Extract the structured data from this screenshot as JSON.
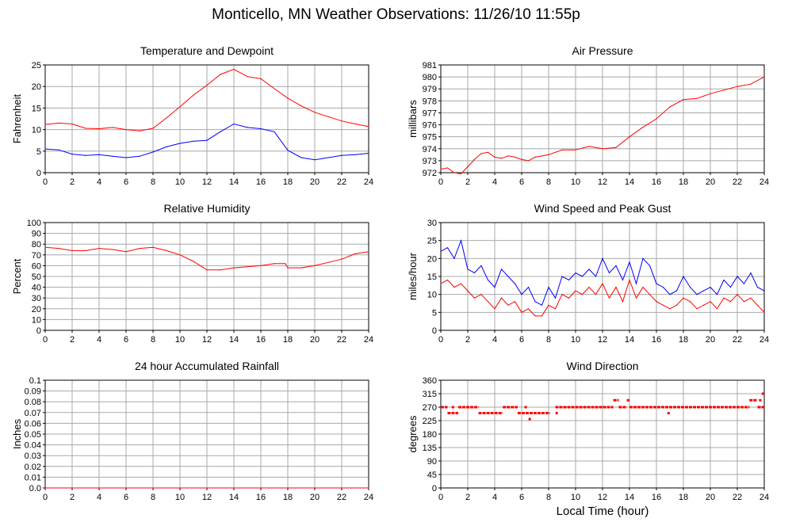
{
  "page": {
    "title": "Monticello, MN Weather Observations: 11/26/10 11:55p",
    "xaxis_label": "Local Time (hour)"
  },
  "colors": {
    "red": "#ff0000",
    "blue": "#0000ff",
    "grid": "#a8a8a8"
  },
  "chart_data": [
    {
      "id": "temp",
      "type": "line",
      "title": "Temperature and Dewpoint",
      "ylabel": "Fahrenheit",
      "xlim": [
        0,
        24
      ],
      "ylim": [
        0,
        25
      ],
      "x_ticks": [
        0,
        2,
        4,
        6,
        8,
        10,
        12,
        14,
        16,
        18,
        20,
        22,
        24
      ],
      "y_ticks": [
        0,
        5,
        10,
        15,
        20,
        25
      ],
      "grid": true,
      "series": [
        {
          "color": "#ff0000",
          "x": [
            0,
            1,
            2,
            3,
            4,
            5,
            6,
            7,
            8,
            9,
            10,
            11,
            12,
            13,
            14,
            15,
            16,
            17,
            18,
            19,
            20,
            21,
            22,
            23,
            24
          ],
          "values": [
            11.2,
            11.5,
            11.3,
            10.3,
            10.2,
            10.5,
            10.0,
            9.7,
            10.3,
            12.7,
            15.3,
            18.0,
            20.3,
            22.8,
            24.0,
            22.3,
            21.8,
            19.5,
            17.3,
            15.5,
            14.0,
            13.0,
            12.0,
            11.3,
            10.7
          ]
        },
        {
          "color": "#0000ff",
          "x": [
            0,
            1,
            2,
            3,
            4,
            5,
            6,
            7,
            8,
            9,
            10,
            11,
            12,
            13,
            14,
            15,
            16,
            17,
            18,
            19,
            20,
            21,
            22,
            23,
            24
          ],
          "values": [
            5.5,
            5.3,
            4.3,
            4.0,
            4.2,
            3.8,
            3.5,
            3.8,
            4.8,
            6.0,
            6.8,
            7.3,
            7.5,
            9.5,
            11.3,
            10.5,
            10.2,
            9.5,
            5.2,
            3.5,
            3.0,
            3.5,
            4.0,
            4.2,
            4.5
          ]
        }
      ]
    },
    {
      "id": "pressure",
      "type": "line",
      "title": "Air Pressure",
      "ylabel": "millibars",
      "xlim": [
        0,
        24
      ],
      "ylim": [
        972,
        981
      ],
      "x_ticks": [
        0,
        2,
        4,
        6,
        8,
        10,
        12,
        14,
        16,
        18,
        20,
        22,
        24
      ],
      "y_ticks": [
        972,
        973,
        974,
        975,
        976,
        977,
        978,
        979,
        980,
        981
      ],
      "grid": true,
      "series": [
        {
          "color": "#ff0000",
          "x": [
            0,
            0.5,
            1,
            1.5,
            2,
            2.5,
            3,
            3.5,
            4,
            4.5,
            5,
            5.5,
            6,
            6.5,
            7,
            8,
            9,
            10,
            11,
            12,
            13,
            14,
            15,
            16,
            17,
            18,
            19,
            20,
            21,
            22,
            23,
            24
          ],
          "values": [
            972.3,
            972.4,
            972.0,
            971.9,
            972.5,
            973.1,
            973.6,
            973.7,
            973.3,
            973.2,
            973.4,
            973.3,
            973.1,
            973.0,
            973.3,
            973.5,
            973.9,
            973.9,
            974.2,
            974.0,
            974.1,
            975.0,
            975.8,
            976.5,
            977.5,
            978.1,
            978.2,
            978.6,
            978.9,
            979.2,
            979.4,
            980.0
          ]
        }
      ]
    },
    {
      "id": "humidity",
      "type": "line",
      "title": "Relative Humidity",
      "ylabel": "Percent",
      "xlim": [
        0,
        24
      ],
      "ylim": [
        0,
        100
      ],
      "x_ticks": [
        0,
        2,
        4,
        6,
        8,
        10,
        12,
        14,
        16,
        18,
        20,
        22,
        24
      ],
      "y_ticks": [
        0,
        10,
        20,
        30,
        40,
        50,
        60,
        70,
        80,
        90,
        100
      ],
      "grid": true,
      "series": [
        {
          "color": "#ff0000",
          "x": [
            0,
            1,
            2,
            3,
            4,
            5,
            6,
            7,
            8,
            9,
            10,
            11,
            12,
            13,
            14,
            15,
            16,
            17,
            17.8,
            18,
            19,
            20,
            21,
            22,
            23,
            24
          ],
          "values": [
            77,
            76,
            74,
            74,
            76,
            75,
            73,
            76,
            77,
            74,
            70,
            64,
            56,
            56,
            58,
            59,
            60,
            62,
            62,
            58,
            58,
            60,
            63,
            66,
            71,
            73
          ]
        }
      ]
    },
    {
      "id": "wind",
      "type": "line",
      "title": "Wind Speed and Peak Gust",
      "ylabel": "miles/hour",
      "xlim": [
        0,
        24
      ],
      "ylim": [
        0,
        30
      ],
      "x_ticks": [
        0,
        2,
        4,
        6,
        8,
        10,
        12,
        14,
        16,
        18,
        20,
        22,
        24
      ],
      "y_ticks": [
        0,
        5,
        10,
        15,
        20,
        25,
        30
      ],
      "grid": true,
      "series": [
        {
          "color": "#0000ff",
          "x": [
            0,
            0.5,
            1,
            1.5,
            2,
            2.5,
            3,
            3.5,
            4,
            4.5,
            5,
            5.5,
            6,
            6.5,
            7,
            7.5,
            8,
            8.5,
            9,
            9.5,
            10,
            10.5,
            11,
            11.5,
            12,
            12.5,
            13,
            13.5,
            14,
            14.5,
            15,
            15.5,
            16,
            16.5,
            17,
            17.5,
            18,
            18.5,
            19,
            19.5,
            20,
            20.5,
            21,
            21.5,
            22,
            22.5,
            23,
            23.5,
            24
          ],
          "values": [
            22,
            23,
            20,
            25,
            17,
            16,
            18,
            14,
            12,
            17,
            15,
            13,
            10,
            12,
            8,
            7,
            12,
            9,
            15,
            14,
            16,
            15,
            17,
            15,
            20,
            16,
            18,
            14,
            19,
            13,
            20,
            18,
            13,
            12,
            10,
            11,
            15,
            12,
            10,
            11,
            12,
            10,
            14,
            12,
            15,
            13,
            16,
            12,
            11
          ]
        },
        {
          "color": "#ff0000",
          "x": [
            0,
            0.5,
            1,
            1.5,
            2,
            2.5,
            3,
            3.5,
            4,
            4.5,
            5,
            5.5,
            6,
            6.5,
            7,
            7.5,
            8,
            8.5,
            9,
            9.5,
            10,
            10.5,
            11,
            11.5,
            12,
            12.5,
            13,
            13.5,
            14,
            14.5,
            15,
            15.5,
            16,
            16.5,
            17,
            17.5,
            18,
            18.5,
            19,
            19.5,
            20,
            20.5,
            21,
            21.5,
            22,
            22.5,
            23,
            23.5,
            24
          ],
          "values": [
            13,
            14,
            12,
            13,
            11,
            9,
            10,
            8,
            6,
            9,
            7,
            8,
            5,
            6,
            4,
            4,
            7,
            6,
            10,
            9,
            11,
            10,
            12,
            10,
            13,
            9,
            12,
            8,
            14,
            9,
            12,
            10,
            8,
            7,
            6,
            7,
            9,
            8,
            6,
            7,
            8,
            6,
            9,
            8,
            10,
            8,
            9,
            7,
            5
          ]
        }
      ]
    },
    {
      "id": "rain",
      "type": "line",
      "title": "24 hour Accumulated Rainfall",
      "ylabel": "Inches",
      "xlim": [
        0,
        24
      ],
      "ylim": [
        0,
        0.1
      ],
      "x_ticks": [
        0,
        2,
        4,
        6,
        8,
        10,
        12,
        14,
        16,
        18,
        20,
        22,
        24
      ],
      "y_ticks": [
        "0.0",
        "0.01",
        "0.02",
        "0.03",
        "0.04",
        "0.05",
        "0.06",
        "0.07",
        "0.08",
        "0.09",
        "0.1"
      ],
      "grid": true,
      "series": [
        {
          "color": "#ff0000",
          "x": [
            0,
            24
          ],
          "values": [
            0,
            0
          ]
        }
      ]
    },
    {
      "id": "direction",
      "type": "scatter",
      "title": "Wind Direction",
      "ylabel": "degrees",
      "xlim": [
        0,
        24
      ],
      "ylim": [
        0,
        360
      ],
      "x_ticks": [
        0,
        2,
        4,
        6,
        8,
        10,
        12,
        14,
        16,
        18,
        20,
        22,
        24
      ],
      "y_ticks": [
        0,
        45,
        90,
        135,
        180,
        225,
        270,
        315,
        360
      ],
      "grid": true,
      "series": [
        {
          "color": "#ff0000",
          "segments": [
            {
              "x0": 0.0,
              "x1": 0.5,
              "y": 270
            },
            {
              "x0": 0.5,
              "x1": 1.3,
              "y": 250
            },
            {
              "x0": 1.3,
              "x1": 2.8,
              "y": 270
            },
            {
              "x0": 2.8,
              "x1": 4.6,
              "y": 250
            },
            {
              "x0": 4.6,
              "x1": 5.7,
              "y": 270
            },
            {
              "x0": 5.7,
              "x1": 8.1,
              "y": 250
            },
            {
              "x0": 8.5,
              "x1": 12.8,
              "y": 270
            },
            {
              "x0": 12.8,
              "x1": 13.2,
              "y": 293
            },
            {
              "x0": 13.2,
              "x1": 13.8,
              "y": 270
            },
            {
              "x0": 13.8,
              "x1": 14.0,
              "y": 293
            },
            {
              "x0": 14.0,
              "x1": 22.9,
              "y": 270
            },
            {
              "x0": 22.9,
              "x1": 23.5,
              "y": 293
            },
            {
              "x0": 23.5,
              "x1": 24.0,
              "y": 270
            }
          ],
          "points": [
            {
              "x": 6.6,
              "y": 230
            },
            {
              "x": 8.6,
              "y": 250
            },
            {
              "x": 16.9,
              "y": 250
            },
            {
              "x": 23.9,
              "y": 315
            },
            {
              "x": 0.9,
              "y": 270
            },
            {
              "x": 6.3,
              "y": 270
            },
            {
              "x": 23.7,
              "y": 293
            }
          ]
        }
      ]
    }
  ]
}
